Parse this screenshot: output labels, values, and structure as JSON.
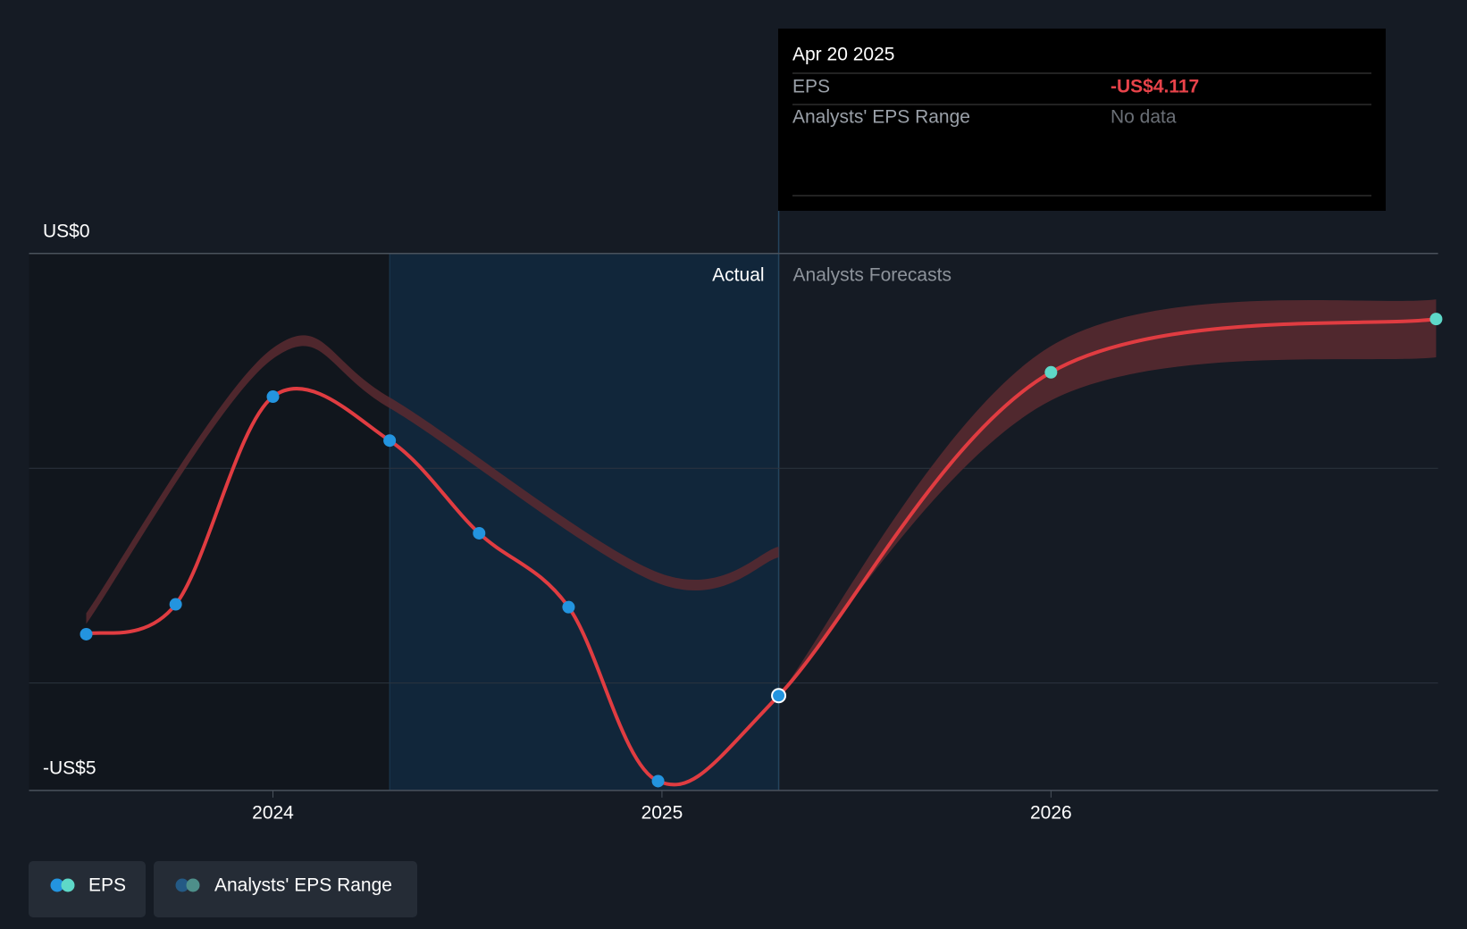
{
  "chart_data": {
    "type": "line",
    "ylim": [
      -5,
      0
    ],
    "yticks": [
      {
        "value": 0,
        "label": "US$0"
      },
      {
        "value": -5,
        "label": "-US$5"
      }
    ],
    "grid_values": [
      -2,
      -4
    ],
    "xlim": [
      2023.373,
      2026.995
    ],
    "xticks": [
      2024,
      2025,
      2026
    ],
    "shaded_x": [
      2023.373,
      2024.3
    ],
    "highlight_x": [
      2024.3,
      2025.3
    ],
    "actual_label": "Actual",
    "forecast_label": "Analysts Forecasts",
    "series": [
      {
        "name": "EPS",
        "color": "#e03c41",
        "marker_color": "#2394df",
        "forecast_marker_color": "#5ed8c8",
        "x": [
          2023.52,
          2023.75,
          2024.0,
          2024.3,
          2024.53,
          2024.76,
          2024.99,
          2025.3,
          2026.0,
          2026.99
        ],
        "values": [
          -3.545,
          -3.267,
          -1.333,
          -1.742,
          -2.605,
          -3.293,
          -4.913,
          -4.117,
          -1.106,
          -0.61
        ]
      }
    ],
    "range": {
      "name": "Analysts' EPS Range",
      "color": "#5a2a30",
      "legend_colors": [
        "#245a85",
        "#4e8f8a"
      ],
      "pieces": [
        {
          "x": [
            2023.52,
            2024.0,
            2024.3,
            2024.99,
            2025.3
          ],
          "low": [
            -3.45,
            -0.98,
            -1.44,
            -3.07,
            -2.83
          ],
          "high": [
            -3.35,
            -0.88,
            -1.34,
            -2.97,
            -2.73
          ]
        },
        {
          "x": [
            2025.3,
            2026.0,
            2026.99
          ],
          "low": [
            -4.117,
            -1.368,
            -0.967
          ],
          "high": [
            -4.117,
            -0.862,
            -0.427
          ]
        }
      ]
    },
    "tooltip": {
      "date": "Apr 20 2025",
      "rows": [
        {
          "label": "EPS",
          "value": "-US$4.117"
        },
        {
          "label": "Analysts' EPS Range",
          "value": "No data"
        }
      ]
    }
  }
}
